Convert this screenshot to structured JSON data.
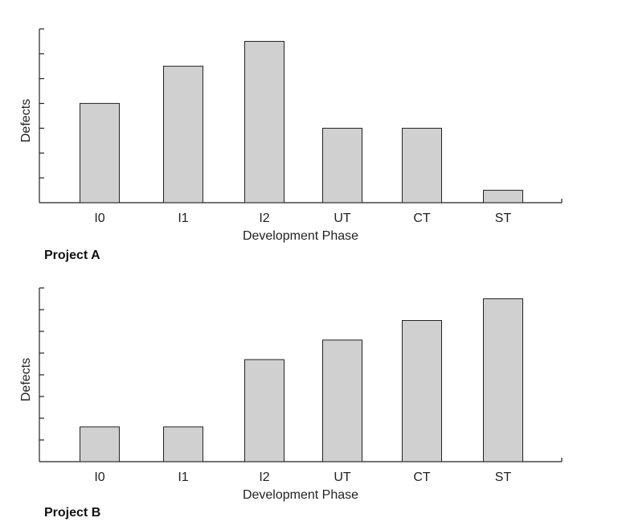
{
  "chart_data": [
    {
      "type": "bar",
      "title": "Project A",
      "xlabel": "Development Phase",
      "ylabel": "Defects",
      "categories": [
        "I0",
        "I1",
        "I2",
        "UT",
        "CT",
        "ST"
      ],
      "values": [
        4.0,
        5.5,
        6.5,
        3.0,
        3.0,
        0.5
      ],
      "ylim": [
        0,
        7
      ],
      "y_ticks": [
        1,
        2,
        3,
        4,
        5,
        6,
        7
      ],
      "y_tick_labels_shown": false,
      "grid": false,
      "bar_color": "#d0d0d0",
      "edge_color": "#222222"
    },
    {
      "type": "bar",
      "title": "Project B",
      "xlabel": "Development Phase",
      "ylabel": "Defects",
      "categories": [
        "I0",
        "I1",
        "I2",
        "UT",
        "CT",
        "ST"
      ],
      "values": [
        1.6,
        1.6,
        4.7,
        5.6,
        6.5,
        7.5
      ],
      "ylim": [
        0,
        8
      ],
      "y_ticks": [
        1,
        2,
        3,
        4,
        5,
        6,
        7,
        8
      ],
      "y_tick_labels_shown": false,
      "grid": false,
      "bar_color": "#d0d0d0",
      "edge_color": "#222222"
    }
  ]
}
